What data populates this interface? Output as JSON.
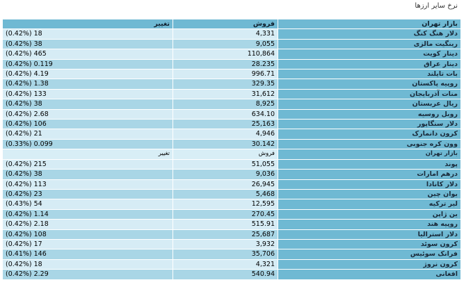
{
  "page_title": "نرخ سایر ارزها",
  "header": {
    "change": "تغییر",
    "sell": "فروش",
    "market": "بازار تهران"
  },
  "rows": [
    {
      "name": "دلار هنگ کنگ",
      "sell": "4,331",
      "change": "(0.42%) 18"
    },
    {
      "name": "رینگیت مالزی",
      "sell": "9,055",
      "change": "(0.42%) 38"
    },
    {
      "name": "دینار کویت",
      "sell": "110,864",
      "change": "(0.42%) 465"
    },
    {
      "name": "دینار عراق",
      "sell": "28.235",
      "change": "(0.42%) 0.119"
    },
    {
      "name": "بات تایلند",
      "sell": "996.71",
      "change": "(0.42%) 4.19"
    },
    {
      "name": "روپیه پاکستان",
      "sell": "329.35",
      "change": "(0.42%) 1.38"
    },
    {
      "name": "منات آذربایجان",
      "sell": "31,612",
      "change": "(0.42%) 133"
    },
    {
      "name": "ریال عربستان",
      "sell": "8,925",
      "change": "(0.42%) 38"
    },
    {
      "name": "روبل روسیه",
      "sell": "634.10",
      "change": "(0.42%) 2.68"
    },
    {
      "name": "دلار سنگاپور",
      "sell": "25,163",
      "change": "(0.42%) 106"
    },
    {
      "name": "کرون دانمارک",
      "sell": "4,946",
      "change": "(0.42%) 21"
    },
    {
      "name": "وون کره جنوبی",
      "sell": "30.142",
      "change": "(0.33%) 0.099"
    }
  ],
  "subheader": {
    "change": "تغییر",
    "sell": "فروش",
    "market": "بازار تهران"
  },
  "rows2": [
    {
      "name": "پوند",
      "sell": "51,055",
      "change": "(0.42%) 215"
    },
    {
      "name": "درهم امارات",
      "sell": "9,036",
      "change": "(0.42%) 38"
    },
    {
      "name": "دلار کانادا",
      "sell": "26,945",
      "change": "(0.42%) 113"
    },
    {
      "name": "یوان چین",
      "sell": "5,468",
      "change": "(0.42%) 23"
    },
    {
      "name": "لیر ترکیه",
      "sell": "12,595",
      "change": "(0.43%) 54"
    },
    {
      "name": "ین ژاپن",
      "sell": "270.45",
      "change": "(0.42%) 1.14"
    },
    {
      "name": "روپیه هند",
      "sell": "515.91",
      "change": "(0.42%) 2.18"
    },
    {
      "name": "دلار استرالیا",
      "sell": "25,687",
      "change": "(0.42%) 108"
    },
    {
      "name": "کرون سوئد",
      "sell": "3,932",
      "change": "(0.42%) 17"
    },
    {
      "name": "فرانک سوئیس",
      "sell": "35,706",
      "change": "(0.41%) 146"
    },
    {
      "name": "کرون نروژ",
      "sell": "4,321",
      "change": "(0.42%) 18"
    },
    {
      "name": "افغانی",
      "sell": "540.94",
      "change": "(0.42%) 2.29"
    }
  ]
}
